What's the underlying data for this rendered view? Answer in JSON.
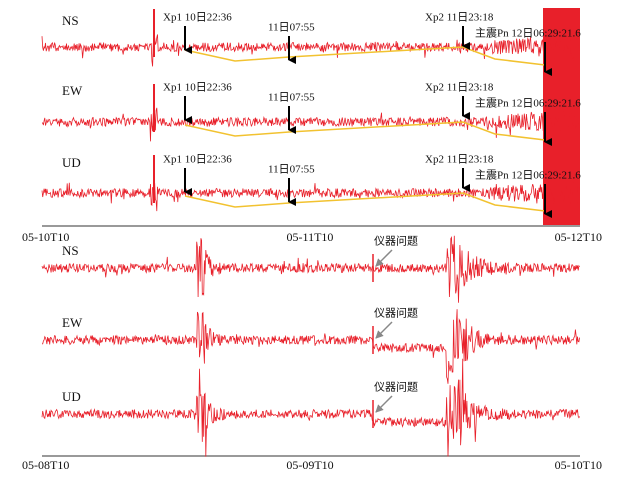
{
  "panels": [
    {
      "channels": [
        "NS",
        "EW",
        "UD"
      ],
      "annotations": [
        [
          "Xp1 10日22:36",
          "11日07:55",
          "Xp2 11日23:18",
          "主震Pn 12日06:29:21.6"
        ],
        [
          "Xp1 10日22:36",
          "11日07:55",
          "Xp2 11日23:18",
          "主震Pn 12日06:29:21.6"
        ],
        [
          "Xp1 10日22:36",
          "11日07:55",
          "Xp2 11日23:18",
          "主震Pn 12日06:29:21.6"
        ]
      ],
      "axis_labels": [
        "05-10T10",
        "05-11T10",
        "05-12T10"
      ]
    },
    {
      "channels": [
        "NS",
        "EW",
        "UD"
      ],
      "annotations": [
        "仪器问题",
        "仪器问题",
        "仪器问题"
      ],
      "axis_labels": [
        "05-08T10",
        "05-09T10",
        "05-10T10"
      ]
    }
  ]
}
